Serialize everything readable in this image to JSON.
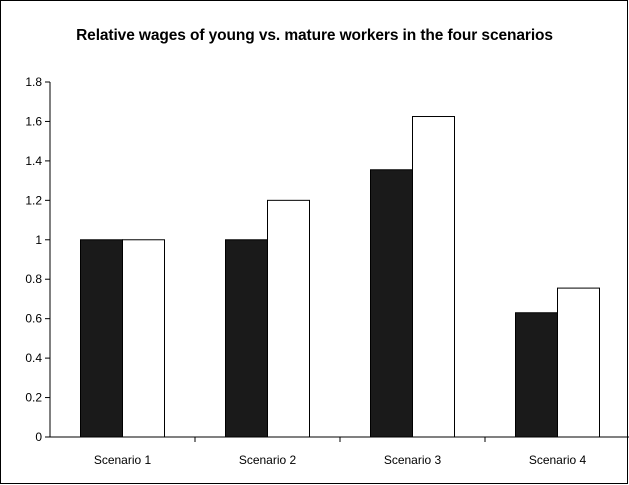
{
  "chart_data": {
    "type": "bar",
    "title": "Relative wages of young vs. mature workers in the four scenarios",
    "xlabel": "",
    "ylabel": "",
    "categories": [
      "Scenario 1",
      "Scenario 2",
      "Scenario 3",
      "Scenario 4"
    ],
    "series": [
      {
        "values": [
          1.0,
          1.0,
          1.355,
          0.63
        ],
        "color": "#1a1a1a"
      },
      {
        "values": [
          1.0,
          1.2,
          1.625,
          0.755
        ],
        "color": "#ffffff"
      }
    ],
    "ylim": [
      0,
      1.8
    ],
    "yticks": [
      "0",
      "0.2",
      "0.4",
      "0.6",
      "0.8",
      "1",
      "1.2",
      "1.4",
      "1.6",
      "1.8"
    ],
    "grid": false,
    "legend": "none"
  }
}
